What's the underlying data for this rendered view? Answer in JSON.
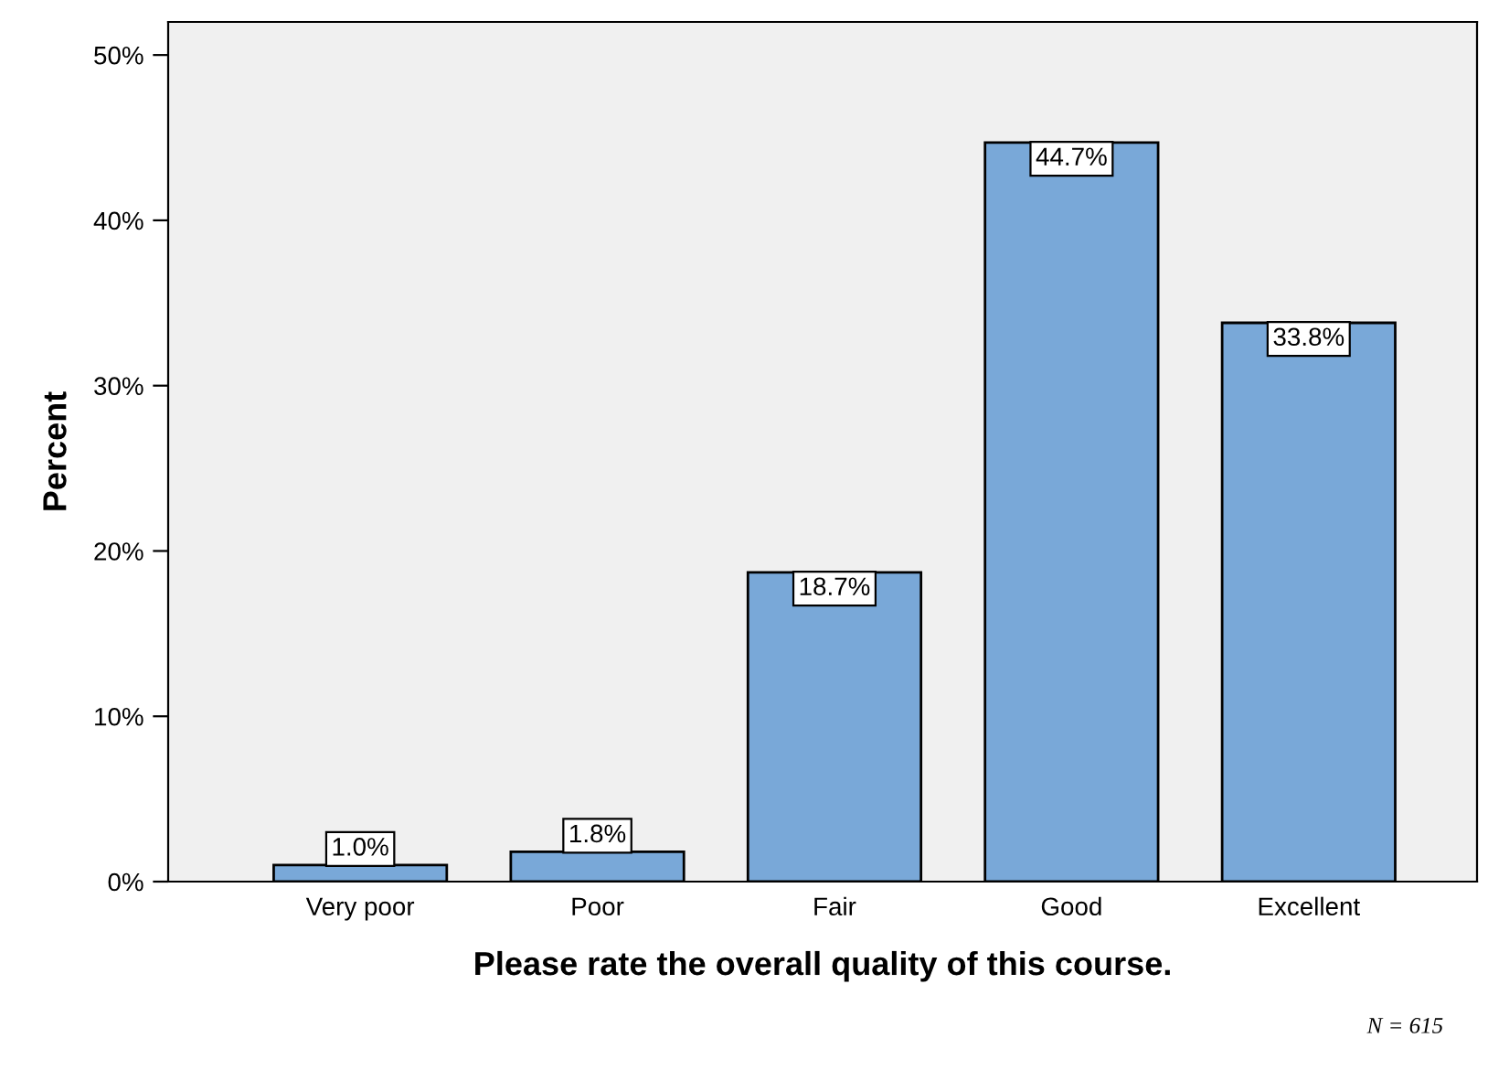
{
  "chart_data": {
    "type": "bar",
    "xlabel": "Please rate the overall quality of this course.",
    "ylabel": "Percent",
    "categories": [
      "Very poor",
      "Poor",
      "Fair",
      "Good",
      "Excellent"
    ],
    "values": [
      1.0,
      1.8,
      18.7,
      44.7,
      33.8
    ],
    "value_labels": [
      "1.0%",
      "1.8%",
      "18.7%",
      "44.7%",
      "33.8%"
    ],
    "color": "#79a8d8",
    "ylim": [
      0,
      52
    ],
    "yticks": [
      {
        "value": 0,
        "label": "0%"
      },
      {
        "value": 10,
        "label": "10%"
      },
      {
        "value": 20,
        "label": "20%"
      },
      {
        "value": 30,
        "label": "30%"
      },
      {
        "value": 40,
        "label": "40%"
      },
      {
        "value": 50,
        "label": "50%"
      }
    ],
    "grid": false,
    "annotations": [
      "N = 615"
    ]
  }
}
